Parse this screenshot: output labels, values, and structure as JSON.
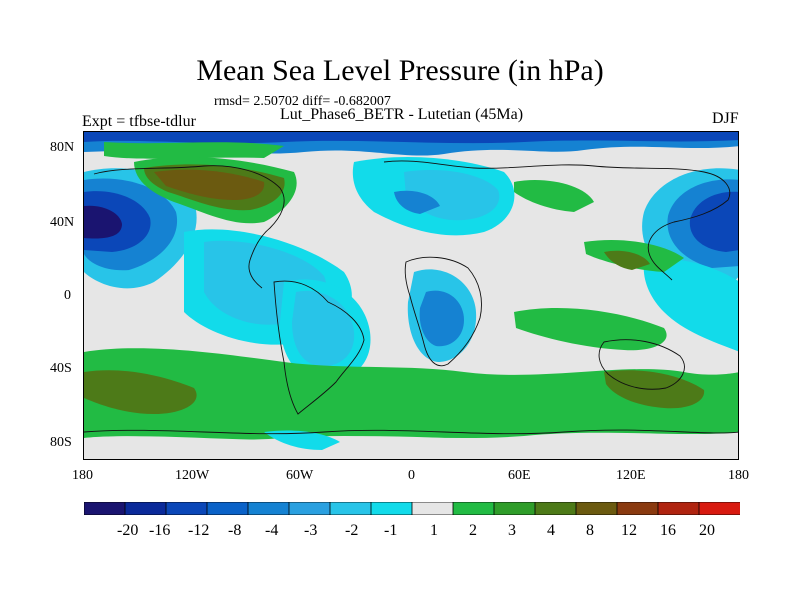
{
  "header": {
    "title": "Mean Sea Level Pressure (in hPa)",
    "stats": "rmsd= 2.50702 diff= -0.682007",
    "subtitle": "Lut_Phase6_BETR - Lutetian (45Ma)",
    "experiment": "Expt = tfbse-tdlur",
    "season": "DJF"
  },
  "axes": {
    "lat_labels": [
      "80N",
      "40N",
      "0",
      "40S",
      "80S"
    ],
    "lon_labels": [
      "180",
      "120W",
      "60W",
      "0",
      "60E",
      "120E",
      "180"
    ]
  },
  "colorbar": {
    "labels": [
      "-20",
      "-16",
      "-12",
      "-8",
      "-4",
      "-3",
      "-2",
      "-1",
      "1",
      "2",
      "3",
      "4",
      "8",
      "12",
      "16",
      "20"
    ],
    "colors": [
      "#1a1470",
      "#0a2a9a",
      "#0b47b8",
      "#0a62c8",
      "#1582d2",
      "#2aa0e0",
      "#28c4e8",
      "#12dbea",
      "#e6e6e6",
      "#22bb44",
      "#2f9d2a",
      "#4d7a18",
      "#6b5a10",
      "#8a3a10",
      "#b02410",
      "#d81a10"
    ]
  },
  "map_colors": {
    "background": "#e6e6e6",
    "coast": "#111111"
  }
}
